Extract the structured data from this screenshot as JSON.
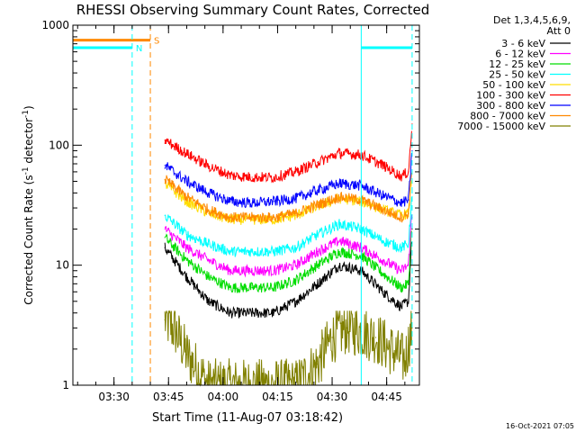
{
  "chart_data": {
    "type": "line",
    "title": "RHESSI Observing Summary Count Rates, Corrected",
    "xlabel": "Start Time (11-Aug-07 03:18:42)",
    "ylabel_main": "Corrected Count Rate (s",
    "ylabel_sup1": "-1",
    "ylabel_mid": " detector",
    "ylabel_sup2": "-1",
    "ylabel_end": ")",
    "ylabel_full": "Corrected Count Rate (s-1 detector-1)",
    "yscale": "log",
    "ylim": [
      1,
      1000
    ],
    "xlim": [
      "03:18:42",
      "04:54:00"
    ],
    "x_ticks": [
      "03:30",
      "03:45",
      "04:00",
      "04:15",
      "04:30",
      "04:45"
    ],
    "y_ticks": [
      "1",
      "10",
      "100",
      "1000"
    ],
    "legend_header": [
      "Det 1,3,4,5,6,9,",
      "Att 0"
    ],
    "legend_placement": "outside-right",
    "timestamp": "16-Oct-2021 07:05",
    "series": [
      {
        "name": "3 - 6 keV",
        "color": "#000000",
        "times": [
          "03:44",
          "03:50",
          "03:56",
          "04:02",
          "04:08",
          "04:14",
          "04:20",
          "04:26",
          "04:32",
          "04:38",
          "04:44",
          "04:49",
          "04:51",
          "04:52"
        ],
        "values": [
          14,
          8,
          5,
          4,
          4,
          4,
          5,
          7,
          10,
          9,
          6,
          4.5,
          5,
          20
        ]
      },
      {
        "name": "6 - 12 keV",
        "color": "#ff00ff",
        "times": [
          "03:44",
          "03:50",
          "03:56",
          "04:02",
          "04:08",
          "04:14",
          "04:20",
          "04:26",
          "04:32",
          "04:38",
          "04:44",
          "04:49",
          "04:51",
          "04:52"
        ],
        "values": [
          20,
          14,
          11,
          9,
          9,
          9,
          10,
          13,
          16,
          14,
          11,
          9,
          10,
          30
        ]
      },
      {
        "name": "12 - 25 keV",
        "color": "#00dd00",
        "times": [
          "03:44",
          "03:50",
          "03:56",
          "04:02",
          "04:08",
          "04:14",
          "04:20",
          "04:26",
          "04:32",
          "04:38",
          "04:44",
          "04:49",
          "04:51",
          "04:52"
        ],
        "values": [
          17,
          11,
          8,
          6.5,
          6.5,
          6.5,
          7.5,
          10,
          13,
          12,
          8.5,
          6.5,
          7,
          25
        ]
      },
      {
        "name": "25 - 50 keV",
        "color": "#00ffff",
        "times": [
          "03:44",
          "03:50",
          "03:56",
          "04:02",
          "04:08",
          "04:14",
          "04:20",
          "04:26",
          "04:32",
          "04:38",
          "04:44",
          "04:49",
          "04:51",
          "04:52"
        ],
        "values": [
          26,
          18,
          15,
          13,
          13,
          13,
          14,
          18,
          22,
          20,
          16,
          14,
          15,
          40
        ]
      },
      {
        "name": "50 - 100 keV",
        "color": "#ffdd00",
        "times": [
          "03:44",
          "03:50",
          "03:56",
          "04:02",
          "04:08",
          "04:14",
          "04:20",
          "04:26",
          "04:32",
          "04:38",
          "04:44",
          "04:49",
          "04:51",
          "04:52"
        ],
        "values": [
          48,
          34,
          27,
          24,
          24,
          24,
          26,
          31,
          36,
          34,
          29,
          26,
          27,
          60
        ]
      },
      {
        "name": "100 - 300 keV",
        "color": "#ff0000",
        "times": [
          "03:44",
          "03:50",
          "03:56",
          "04:02",
          "04:08",
          "04:14",
          "04:20",
          "04:26",
          "04:32",
          "04:38",
          "04:44",
          "04:49",
          "04:51",
          "04:52"
        ],
        "values": [
          110,
          85,
          67,
          56,
          54,
          54,
          60,
          72,
          86,
          83,
          68,
          55,
          60,
          150
        ]
      },
      {
        "name": "300 - 800 keV",
        "color": "#0000ff",
        "times": [
          "03:44",
          "03:50",
          "03:56",
          "04:02",
          "04:08",
          "04:14",
          "04:20",
          "04:26",
          "04:32",
          "04:38",
          "04:44",
          "04:49",
          "04:51",
          "04:52"
        ],
        "values": [
          68,
          50,
          40,
          34,
          33,
          34,
          36,
          42,
          48,
          46,
          38,
          33,
          35,
          90
        ]
      },
      {
        "name": "800 - 7000 keV",
        "color": "#ff8800",
        "times": [
          "03:44",
          "03:50",
          "03:56",
          "04:02",
          "04:08",
          "04:14",
          "04:20",
          "04:26",
          "04:32",
          "04:38",
          "04:44",
          "04:49",
          "04:51",
          "04:52"
        ],
        "values": [
          52,
          37,
          29,
          25,
          25,
          25,
          27,
          32,
          37,
          35,
          29,
          25,
          27,
          70
        ]
      },
      {
        "name": "7000 - 15000 keV",
        "color": "#808000",
        "times": [
          "03:44",
          "03:47",
          "03:50",
          "03:56",
          "04:02",
          "04:08",
          "04:14",
          "04:20",
          "04:26",
          "04:30",
          "04:34",
          "04:38",
          "04:42",
          "04:46",
          "04:50",
          "04:52"
        ],
        "values": [
          3.5,
          2.8,
          1.8,
          1,
          1,
          1,
          1,
          1,
          1.5,
          2.5,
          3,
          2.8,
          2.5,
          2,
          1.6,
          3
        ]
      }
    ],
    "annotations": [
      {
        "label": "S",
        "color": "#ff8800",
        "time": "03:40",
        "style": "dashed-vertical"
      },
      {
        "label": "N",
        "color": "#00ffff",
        "time": "03:35",
        "style": "dashed-vertical"
      }
    ],
    "state_bars": [
      {
        "name": "S",
        "color": "#ff8800",
        "level": 750,
        "from": "03:18:42",
        "to": "03:40"
      },
      {
        "name": "N",
        "color": "#00ffff",
        "level": 650,
        "from": "03:18:42",
        "to": "03:35"
      },
      {
        "name": "N",
        "color": "#00ffff",
        "level": 650,
        "from": "04:38",
        "to": "04:52"
      }
    ],
    "night_markers": [
      {
        "color": "#00ffff",
        "time": "04:38",
        "style": "solid-vertical"
      },
      {
        "color": "#00ffff",
        "time": "04:52",
        "style": "dashed-vertical"
      }
    ]
  }
}
